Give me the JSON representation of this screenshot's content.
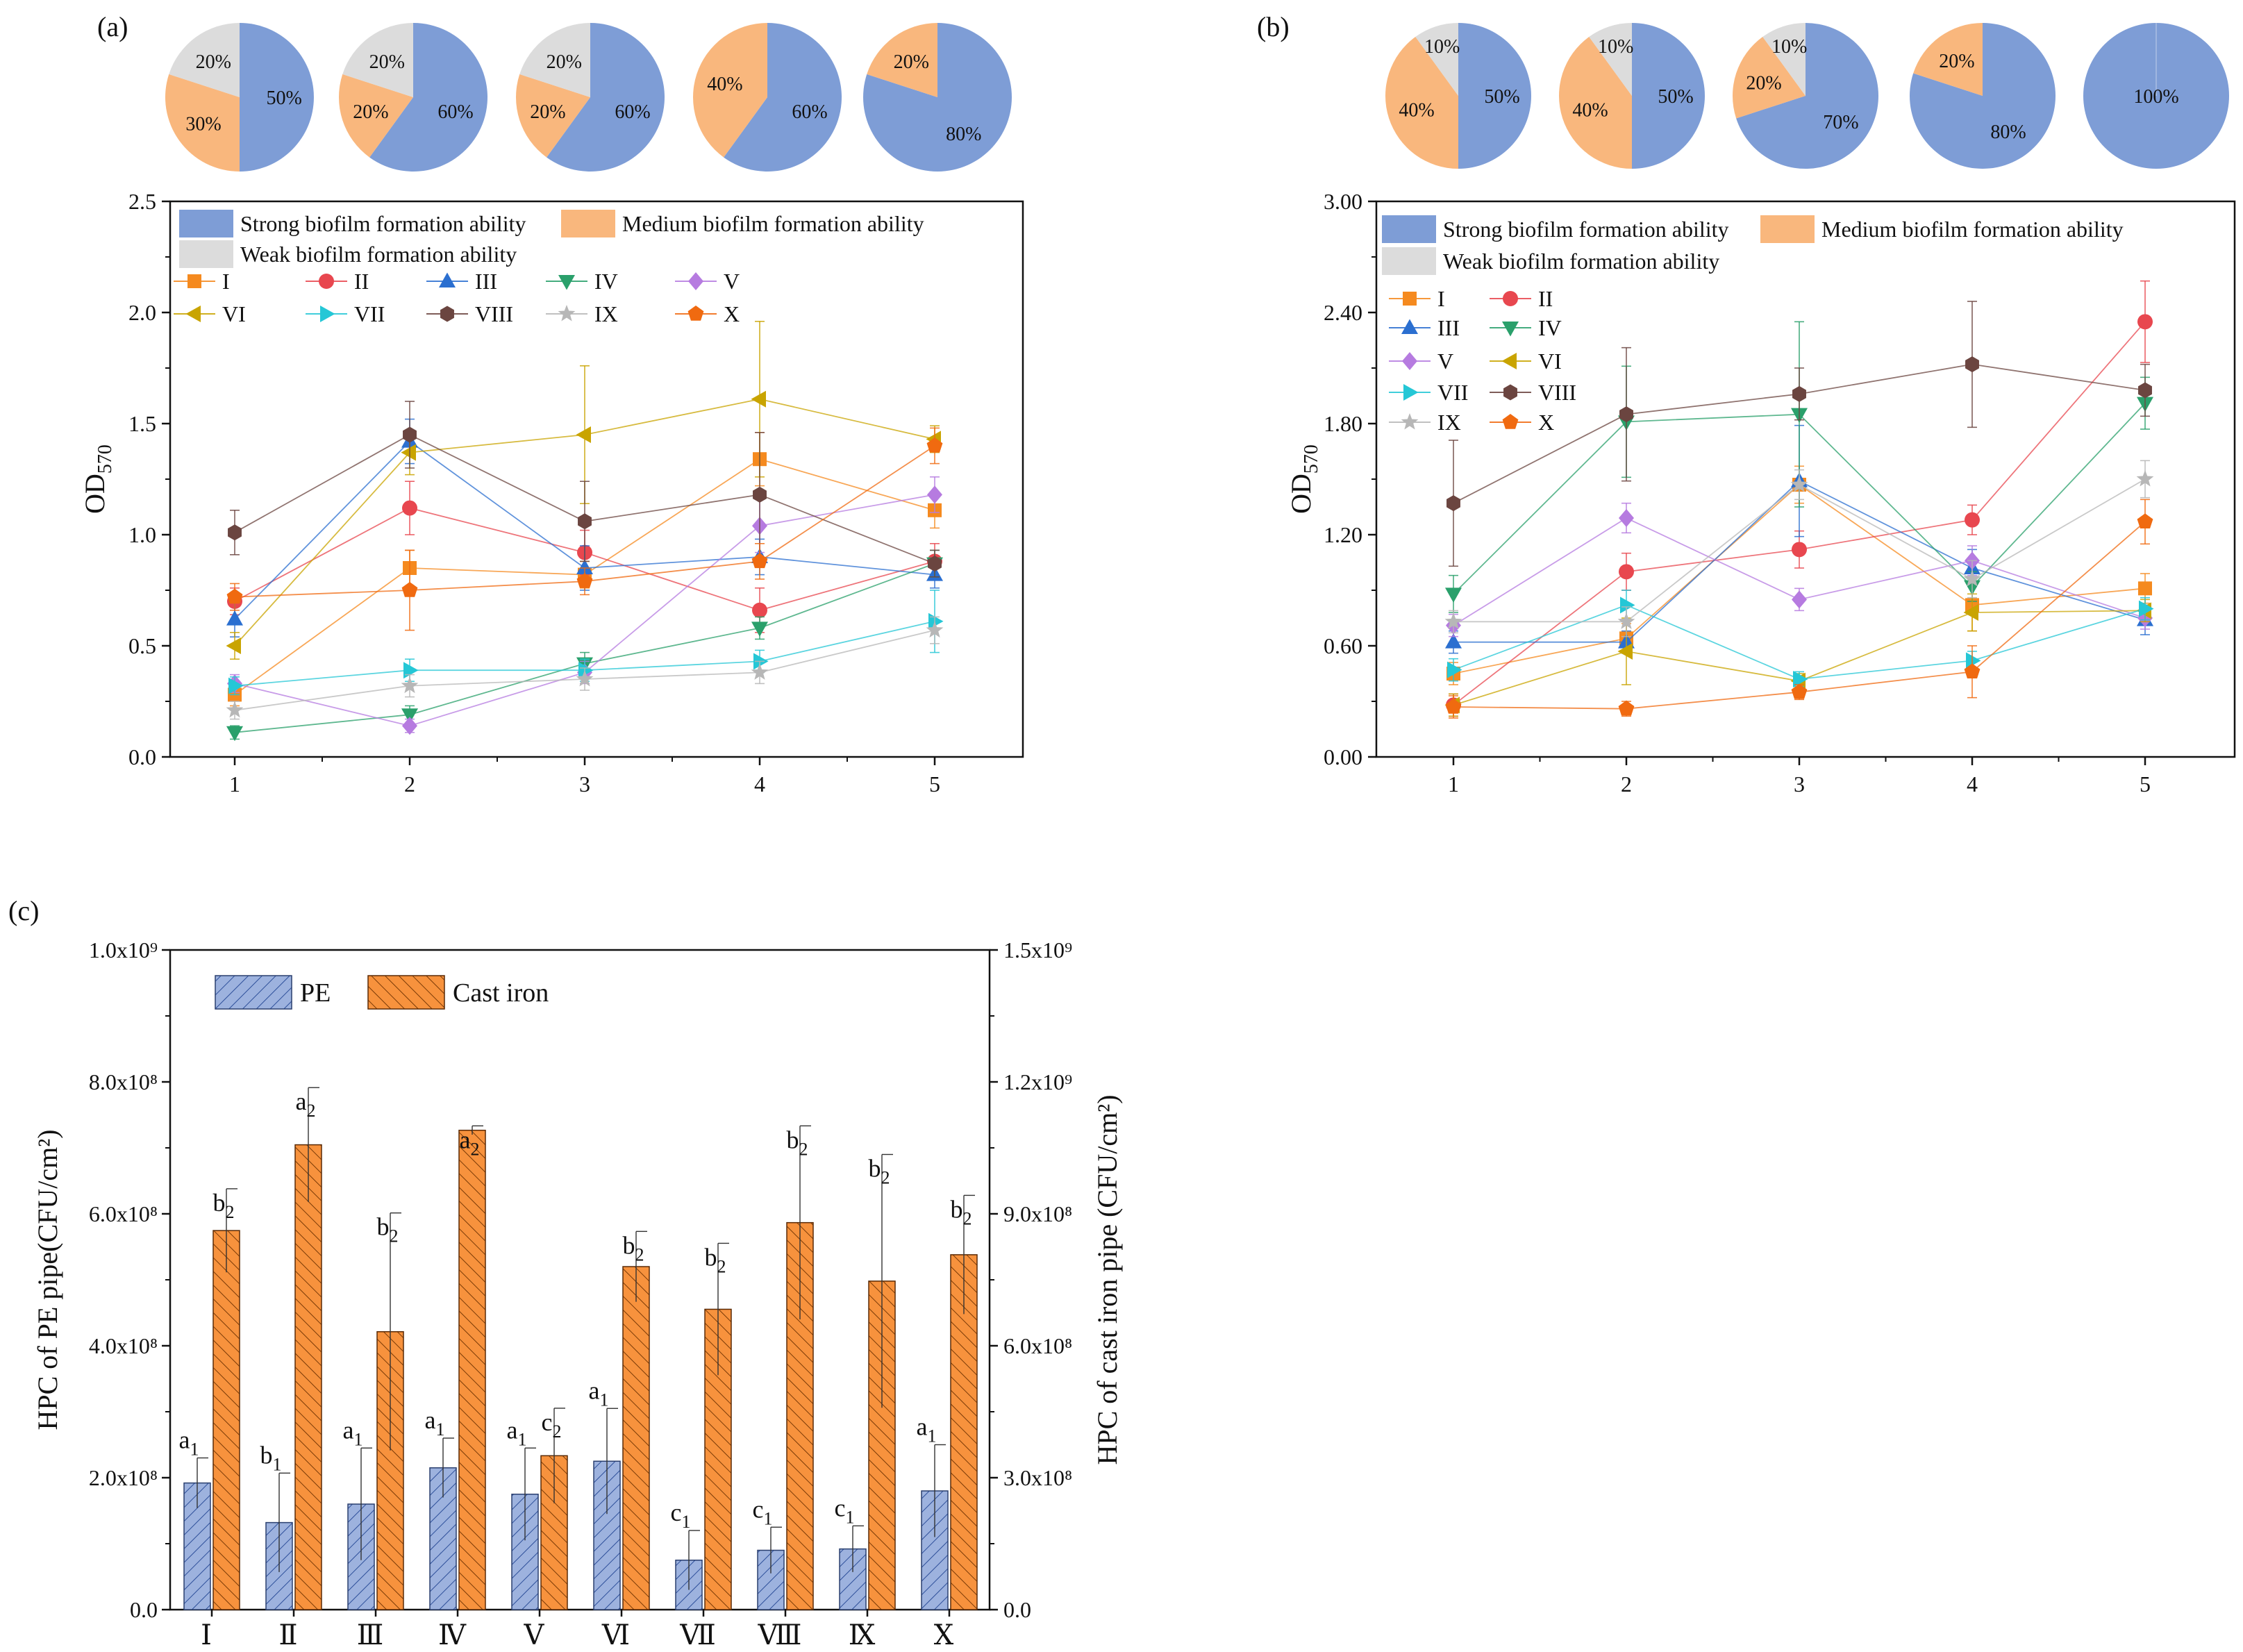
{
  "colors": {
    "strong": "#7e9dd6",
    "medium": "#f9b77d",
    "weak": "#dcdcdc",
    "pe_bar": "#9db2de",
    "iron_bar": "#f7923d",
    "series": [
      "#f58a1f",
      "#e8474f",
      "#2b6fd0",
      "#2aa06b",
      "#b67be0",
      "#c9a400",
      "#25c7d6",
      "#6b4540",
      "#b7b7b7",
      "#f06a10"
    ]
  },
  "chart_data": [
    {
      "type": "pie",
      "panel": "(a)",
      "pies": [
        {
          "strong": 50,
          "medium": 30,
          "weak": 20,
          "labels": [
            "50%",
            "30%",
            "20%"
          ]
        },
        {
          "strong": 60,
          "medium": 20,
          "weak": 20,
          "labels": [
            "60%",
            "20%",
            "20%"
          ]
        },
        {
          "strong": 60,
          "medium": 20,
          "weak": 20,
          "labels": [
            "60%",
            "20%",
            "20%"
          ]
        },
        {
          "strong": 60,
          "medium": 40,
          "weak": 0,
          "labels": [
            "60%",
            "40%",
            ""
          ]
        },
        {
          "strong": 80,
          "medium": 20,
          "weak": 0,
          "labels": [
            "80%",
            "20%",
            ""
          ]
        }
      ]
    },
    {
      "type": "line",
      "panel": "(a)",
      "title": "",
      "xlabel": "",
      "ylabel": "OD570",
      "x": [
        1,
        2,
        3,
        4,
        5
      ],
      "xticks": [
        "1",
        "2",
        "3",
        "4",
        "5"
      ],
      "ylim": [
        0,
        2.5
      ],
      "yticks": [
        "0.0",
        "0.5",
        "1.0",
        "1.5",
        "2.0",
        "2.5"
      ],
      "legend_fill": [
        "Strong biofilm formation ability",
        "Medium biofilm formation ability",
        "Weak biofilm formation ability"
      ],
      "series": [
        {
          "name": "I",
          "marker": "square",
          "values": [
            0.28,
            0.85,
            0.82,
            1.34,
            1.11
          ],
          "err": [
            0.05,
            0.08,
            0.06,
            0.12,
            0.08
          ]
        },
        {
          "name": "II",
          "marker": "circle",
          "values": [
            0.7,
            1.12,
            0.92,
            0.66,
            0.88
          ],
          "err": [
            0.06,
            0.12,
            0.1,
            0.1,
            0.08
          ]
        },
        {
          "name": "III",
          "marker": "triangle-up",
          "values": [
            0.62,
            1.42,
            0.85,
            0.9,
            0.82
          ],
          "err": [
            0.08,
            0.1,
            0.1,
            0.08,
            0.06
          ]
        },
        {
          "name": "IV",
          "marker": "triangle-down",
          "values": [
            0.11,
            0.19,
            0.42,
            0.58,
            0.87
          ],
          "err": [
            0.03,
            0.04,
            0.05,
            0.05,
            0.06
          ]
        },
        {
          "name": "V",
          "marker": "diamond",
          "values": [
            0.33,
            0.14,
            0.38,
            1.04,
            1.18
          ],
          "err": [
            0.04,
            0.03,
            0.05,
            0.12,
            0.08
          ]
        },
        {
          "name": "VI",
          "marker": "triangle-left",
          "values": [
            0.5,
            1.37,
            1.45,
            1.61,
            1.43
          ],
          "err": [
            0.06,
            0.1,
            0.31,
            0.35,
            0.06
          ]
        },
        {
          "name": "VII",
          "marker": "triangle-right",
          "values": [
            0.32,
            0.39,
            0.39,
            0.43,
            0.61
          ],
          "err": [
            0.04,
            0.05,
            0.05,
            0.05,
            0.14
          ]
        },
        {
          "name": "VIII",
          "marker": "hexagon",
          "values": [
            1.01,
            1.45,
            1.06,
            1.18,
            0.87
          ],
          "err": [
            0.1,
            0.15,
            0.18,
            0.28,
            0.06
          ]
        },
        {
          "name": "IX",
          "marker": "star",
          "values": [
            0.21,
            0.32,
            0.35,
            0.38,
            0.57
          ],
          "err": [
            0.04,
            0.05,
            0.05,
            0.05,
            0.06
          ]
        },
        {
          "name": "X",
          "marker": "pentagon",
          "values": [
            0.72,
            0.75,
            0.79,
            0.88,
            1.4
          ],
          "err": [
            0.06,
            0.18,
            0.06,
            0.08,
            0.08
          ]
        }
      ]
    },
    {
      "type": "pie",
      "panel": "(b)",
      "pies": [
        {
          "strong": 50,
          "medium": 40,
          "weak": 10,
          "labels": [
            "50%",
            "40%",
            "10%"
          ]
        },
        {
          "strong": 50,
          "medium": 40,
          "weak": 10,
          "labels": [
            "50%",
            "40%",
            "10%"
          ]
        },
        {
          "strong": 70,
          "medium": 20,
          "weak": 10,
          "labels": [
            "70%",
            "20%",
            "10%"
          ]
        },
        {
          "strong": 80,
          "medium": 20,
          "weak": 0,
          "labels": [
            "80%",
            "20%",
            ""
          ]
        },
        {
          "strong": 100,
          "medium": 0,
          "weak": 0,
          "labels": [
            "100%",
            "",
            ""
          ]
        }
      ]
    },
    {
      "type": "line",
      "panel": "(b)",
      "title": "",
      "xlabel": "",
      "ylabel": "OD570",
      "x": [
        1,
        2,
        3,
        4,
        5
      ],
      "xticks": [
        "1",
        "2",
        "3",
        "4",
        "5"
      ],
      "ylim": [
        0,
        3.0
      ],
      "yticks": [
        "0.00",
        "0.60",
        "1.20",
        "1.80",
        "2.40",
        "3.00"
      ],
      "legend_fill": [
        "Strong biofilm formation ability",
        "Medium biofilm formation ability",
        "Weak biofilm formation ability"
      ],
      "series": [
        {
          "name": "I",
          "marker": "square",
          "values": [
            0.45,
            0.64,
            1.47,
            0.82,
            0.91
          ],
          "err": [
            0.06,
            0.08,
            0.1,
            0.14,
            0.08
          ]
        },
        {
          "name": "II",
          "marker": "circle",
          "values": [
            0.28,
            1.0,
            1.12,
            1.28,
            2.35
          ],
          "err": [
            0.06,
            0.1,
            0.1,
            0.08,
            0.22
          ]
        },
        {
          "name": "III",
          "marker": "triangle-up",
          "values": [
            0.62,
            0.62,
            1.49,
            1.02,
            0.74
          ],
          "err": [
            0.06,
            0.06,
            0.3,
            0.1,
            0.08
          ]
        },
        {
          "name": "IV",
          "marker": "triangle-down",
          "values": [
            0.88,
            1.81,
            1.85,
            0.92,
            1.91
          ],
          "err": [
            0.1,
            0.3,
            0.5,
            0.08,
            0.14
          ]
        },
        {
          "name": "V",
          "marker": "diamond",
          "values": [
            0.71,
            1.29,
            0.85,
            1.06,
            0.75
          ],
          "err": [
            0.06,
            0.08,
            0.06,
            0.08,
            0.06
          ]
        },
        {
          "name": "VI",
          "marker": "triangle-left",
          "values": [
            0.28,
            0.57,
            0.41,
            0.78,
            0.79
          ],
          "err": [
            0.06,
            0.18,
            0.04,
            0.1,
            0.06
          ]
        },
        {
          "name": "VII",
          "marker": "triangle-right",
          "values": [
            0.47,
            0.82,
            0.42,
            0.52,
            0.8
          ],
          "err": [
            0.06,
            0.08,
            0.04,
            0.05,
            0.06
          ]
        },
        {
          "name": "VIII",
          "marker": "hexagon",
          "values": [
            1.37,
            1.85,
            1.96,
            2.12,
            1.98
          ],
          "err": [
            0.34,
            0.36,
            0.14,
            0.34,
            0.14
          ]
        },
        {
          "name": "IX",
          "marker": "star",
          "values": [
            0.73,
            0.73,
            1.47,
            0.96,
            1.5
          ],
          "err": [
            0.06,
            0.08,
            0.08,
            0.1,
            0.1
          ]
        },
        {
          "name": "X",
          "marker": "pentagon",
          "values": [
            0.27,
            0.26,
            0.35,
            0.46,
            1.27
          ],
          "err": [
            0.06,
            0.04,
            0.04,
            0.14,
            0.12
          ]
        }
      ]
    },
    {
      "type": "bar",
      "panel": "(c)",
      "categories": [
        "Ⅰ",
        "Ⅱ",
        "Ⅲ",
        "Ⅳ",
        "Ⅴ",
        "Ⅵ",
        "Ⅶ",
        "Ⅷ",
        "Ⅸ",
        "Ⅹ"
      ],
      "ylabel_left": "HPC of PE pipe(CFU/cm²)",
      "ylabel_right": "HPC of cast iron pipe (CFU/cm²)",
      "ylim_left": [
        0,
        1000000000.0
      ],
      "ylim_right": [
        0,
        1500000000.0
      ],
      "yticks_left": [
        "0.0",
        "2.0x10⁸",
        "4.0x10⁸",
        "6.0x10⁸",
        "8.0x10⁸",
        "1.0x10⁹"
      ],
      "yticks_right": [
        "0.0",
        "3.0x10⁸",
        "6.0x10⁸",
        "9.0x10⁸",
        "1.2x10⁹",
        "1.5x10⁹"
      ],
      "series": [
        {
          "name": "PE",
          "axis": "left",
          "values": [
            192000000.0,
            132000000.0,
            160000000.0,
            215000000.0,
            175000000.0,
            225000000.0,
            75000000.0,
            90000000.0,
            92000000.0,
            180000000.0
          ],
          "err": [
            38000000.0,
            75000000.0,
            85000000.0,
            45000000.0,
            70000000.0,
            80000000.0,
            45000000.0,
            35000000.0,
            35000000.0,
            70000000.0
          ],
          "labels": [
            "a",
            "b",
            "a",
            "a",
            "a",
            "a",
            "c",
            "c",
            "c",
            "a"
          ],
          "subs": [
            "1",
            "1",
            "1",
            "1",
            "1",
            "1",
            "1",
            "1",
            "1",
            "1"
          ]
        },
        {
          "name": "Cast iron",
          "axis": "right",
          "values": [
            862000000.0,
            1057000000.0,
            632000000.0,
            1090000000.0,
            350000000.0,
            780000000.0,
            683000000.0,
            880000000.0,
            747000000.0,
            807000000.0
          ],
          "err": [
            95000000.0,
            130000000.0,
            270000000.0,
            10000000.0,
            108000000.0,
            80000000.0,
            150000000.0,
            220000000.0,
            288000000.0,
            135000000.0
          ],
          "labels": [
            "b",
            "a",
            "b",
            "a",
            "c",
            "b",
            "b",
            "b",
            "b",
            "b"
          ],
          "subs": [
            "2",
            "2",
            "2",
            "2",
            "2",
            "2",
            "2",
            "2",
            "2",
            "2"
          ]
        }
      ]
    }
  ],
  "panel_labels": {
    "a": "(a)",
    "b": "(b)",
    "c": "(c)"
  },
  "axis_text": {
    "od_main": "OD",
    "od_sub": "570"
  }
}
